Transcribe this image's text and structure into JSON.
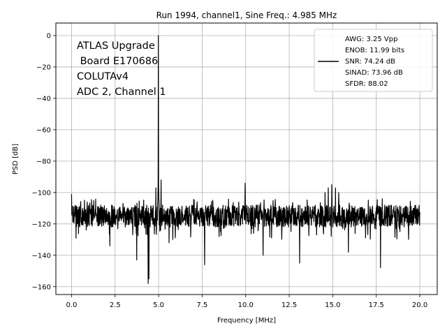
{
  "chart_data": {
    "type": "line",
    "title": "Run 1994, channel1, Sine Freq.: 4.985 MHz",
    "xlabel": "Frequency [MHz]",
    "ylabel": "PSD [dB]",
    "xlim": [
      -0.9,
      21.0
    ],
    "ylim": [
      -165,
      8
    ],
    "xticks": [
      0.0,
      2.5,
      5.0,
      7.5,
      10.0,
      12.5,
      15.0,
      17.5,
      20.0
    ],
    "xtick_labels": [
      "0.0",
      "2.5",
      "5.0",
      "7.5",
      "10.0",
      "12.5",
      "15.0",
      "17.5",
      "20.0"
    ],
    "yticks": [
      0,
      -20,
      -40,
      -60,
      -80,
      -100,
      -120,
      -140,
      -160
    ],
    "ytick_labels": [
      "0",
      "−20",
      "−40",
      "−60",
      "−80",
      "−100",
      "−120",
      "−140",
      "−160"
    ],
    "grid": true,
    "line_color": "#000000",
    "annotation": [
      "ATLAS Upgrade",
      " Board E170686",
      "COLUTAv4",
      "ADC 2, Channel 1"
    ],
    "legend": {
      "position": "top-right",
      "lines": [
        "AWG: 3.25 Vpp",
        "ENOB: 11.99 bits",
        "SNR: 74.24 dB",
        "SINAD: 73.96 dB",
        "SFDR: 88.02"
      ]
    },
    "series": [
      {
        "noise_floor_db": -115,
        "noise_range_db": [
          -130,
          -104
        ],
        "peaks": [
          {
            "x": 0.0,
            "y": -101
          },
          {
            "x": 4.985,
            "y": 0
          },
          {
            "x": 5.15,
            "y": -92
          },
          {
            "x": 4.85,
            "y": -97
          },
          {
            "x": 9.97,
            "y": -94
          },
          {
            "x": 14.55,
            "y": -100
          },
          {
            "x": 14.75,
            "y": -97
          },
          {
            "x": 14.95,
            "y": -95
          },
          {
            "x": 15.15,
            "y": -97
          },
          {
            "x": 15.35,
            "y": -100
          }
        ],
        "dips": [
          {
            "x": 4.4,
            "y": -158
          },
          {
            "x": 4.45,
            "y": -155
          },
          {
            "x": 7.65,
            "y": -146
          },
          {
            "x": 13.1,
            "y": -145
          },
          {
            "x": 17.75,
            "y": -148
          },
          {
            "x": 3.75,
            "y": -143
          },
          {
            "x": 11.0,
            "y": -140
          },
          {
            "x": 2.2,
            "y": -134
          },
          {
            "x": 5.6,
            "y": -132
          },
          {
            "x": 15.9,
            "y": -138
          }
        ]
      }
    ]
  }
}
